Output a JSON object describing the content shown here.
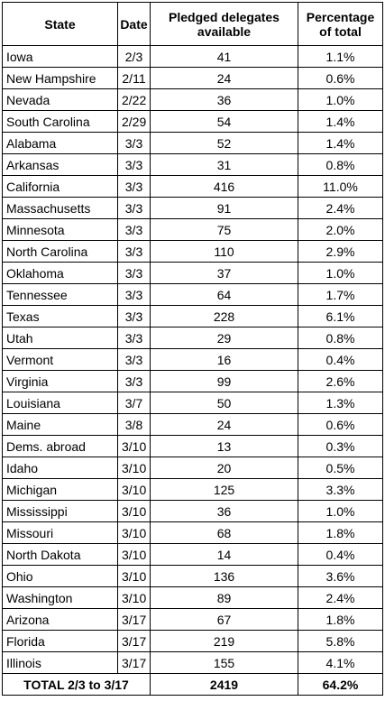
{
  "table": {
    "headers": [
      "State",
      "Date",
      "Pledged delegates available",
      "Percentage of total"
    ],
    "rows": [
      [
        "Iowa",
        "2/3",
        "41",
        "1.1%"
      ],
      [
        "New Hampshire",
        "2/11",
        "24",
        "0.6%"
      ],
      [
        "Nevada",
        "2/22",
        "36",
        "1.0%"
      ],
      [
        "South Carolina",
        "2/29",
        "54",
        "1.4%"
      ],
      [
        "Alabama",
        "3/3",
        "52",
        "1.4%"
      ],
      [
        "Arkansas",
        "3/3",
        "31",
        "0.8%"
      ],
      [
        "California",
        "3/3",
        "416",
        "11.0%"
      ],
      [
        "Massachusetts",
        "3/3",
        "91",
        "2.4%"
      ],
      [
        "Minnesota",
        "3/3",
        "75",
        "2.0%"
      ],
      [
        "North Carolina",
        "3/3",
        "110",
        "2.9%"
      ],
      [
        "Oklahoma",
        "3/3",
        "37",
        "1.0%"
      ],
      [
        "Tennessee",
        "3/3",
        "64",
        "1.7%"
      ],
      [
        "Texas",
        "3/3",
        "228",
        "6.1%"
      ],
      [
        "Utah",
        "3/3",
        "29",
        "0.8%"
      ],
      [
        "Vermont",
        "3/3",
        "16",
        "0.4%"
      ],
      [
        "Virginia",
        "3/3",
        "99",
        "2.6%"
      ],
      [
        "Louisiana",
        "3/7",
        "50",
        "1.3%"
      ],
      [
        "Maine",
        "3/8",
        "24",
        "0.6%"
      ],
      [
        "Dems. abroad",
        "3/10",
        "13",
        "0.3%"
      ],
      [
        "Idaho",
        "3/10",
        "20",
        "0.5%"
      ],
      [
        "Michigan",
        "3/10",
        "125",
        "3.3%"
      ],
      [
        "Mississippi",
        "3/10",
        "36",
        "1.0%"
      ],
      [
        "Missouri",
        "3/10",
        "68",
        "1.8%"
      ],
      [
        "North Dakota",
        "3/10",
        "14",
        "0.4%"
      ],
      [
        "Ohio",
        "3/10",
        "136",
        "3.6%"
      ],
      [
        "Washington",
        "3/10",
        "89",
        "2.4%"
      ],
      [
        "Arizona",
        "3/17",
        "67",
        "1.8%"
      ],
      [
        "Florida",
        "3/17",
        "219",
        "5.8%"
      ],
      [
        "Illinois",
        "3/17",
        "155",
        "4.1%"
      ]
    ],
    "total": [
      "TOTAL 2/3 to 3/17",
      "2419",
      "64.2%"
    ]
  }
}
